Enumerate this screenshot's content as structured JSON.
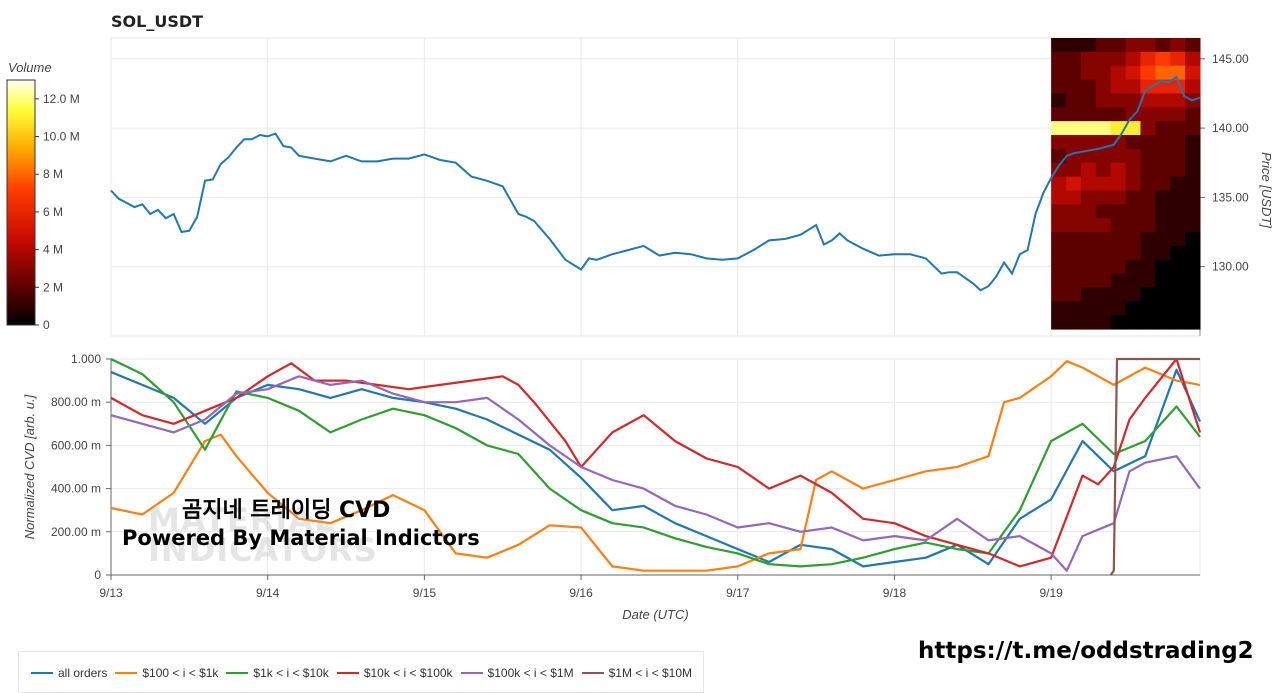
{
  "title": "SOL_USDT",
  "colorbar": {
    "label": "Volume",
    "ticks": [
      {
        "value": 0,
        "label": "0"
      },
      {
        "value": 2,
        "label": "2 M"
      },
      {
        "value": 4,
        "label": "4 M"
      },
      {
        "value": 6,
        "label": "6 M"
      },
      {
        "value": 8,
        "label": "8 M"
      },
      {
        "value": 10,
        "label": "10.0 M"
      },
      {
        "value": 12,
        "label": "12.0 M"
      }
    ],
    "max": 13
  },
  "watermark": {
    "line1": "곰지네 트레이딩 CVD",
    "line2": "Powered By Material Indictors",
    "logo_top": "MATERIAL",
    "logo_bottom": "INDICATORS"
  },
  "footer_url": "https://t.me/oddstrading2",
  "chart_data": [
    {
      "type": "line",
      "title": "SOL_USDT",
      "ylabel": "Price [USDT]",
      "ylim": [
        125,
        146.5
      ],
      "yticks": [
        "130.00",
        "135.00",
        "140.00",
        "145.00"
      ],
      "x_range_days": [
        13,
        19.95
      ],
      "series": [
        {
          "name": "price",
          "color": "#1f77b4",
          "x": [
            13.0,
            13.05,
            13.1,
            13.15,
            13.2,
            13.25,
            13.3,
            13.35,
            13.4,
            13.45,
            13.5,
            13.55,
            13.6,
            13.65,
            13.7,
            13.75,
            13.8,
            13.85,
            13.9,
            13.95,
            14.0,
            14.05,
            14.1,
            14.15,
            14.2,
            14.3,
            14.4,
            14.5,
            14.6,
            14.7,
            14.8,
            14.9,
            15.0,
            15.05,
            15.1,
            15.2,
            15.3,
            15.4,
            15.5,
            15.6,
            15.65,
            15.7,
            15.8,
            15.9,
            16.0,
            16.05,
            16.1,
            16.2,
            16.3,
            16.4,
            16.5,
            16.6,
            16.7,
            16.8,
            16.9,
            17.0,
            17.1,
            17.2,
            17.3,
            17.4,
            17.5,
            17.55,
            17.6,
            17.65,
            17.7,
            17.8,
            17.9,
            18.0,
            18.1,
            18.2,
            18.3,
            18.35,
            18.4,
            18.5,
            18.55,
            18.6,
            18.65,
            18.7,
            18.75,
            18.8,
            18.85,
            18.9,
            18.95,
            19.0,
            19.05,
            19.1,
            19.15,
            19.2,
            19.3,
            19.4,
            19.45,
            19.5,
            19.55,
            19.6,
            19.7,
            19.75,
            19.8,
            19.85,
            19.9,
            19.95
          ],
          "y": [
            135.5,
            134.9,
            134.6,
            134.3,
            134.5,
            133.8,
            134.1,
            133.5,
            133.8,
            132.5,
            132.6,
            133.6,
            136.2,
            136.3,
            137.4,
            137.9,
            138.6,
            139.2,
            139.2,
            139.5,
            139.4,
            139.6,
            138.7,
            138.6,
            138.0,
            137.8,
            137.6,
            138.0,
            137.6,
            137.6,
            137.8,
            137.8,
            138.1,
            137.9,
            137.7,
            137.5,
            136.5,
            136.2,
            135.8,
            133.8,
            133.6,
            133.3,
            132.0,
            130.5,
            129.8,
            130.6,
            130.5,
            130.9,
            131.2,
            131.5,
            130.8,
            131.0,
            130.9,
            130.6,
            130.5,
            130.6,
            131.2,
            131.9,
            132.0,
            132.3,
            133.0,
            131.6,
            131.9,
            132.4,
            131.9,
            131.3,
            130.8,
            130.9,
            130.9,
            130.6,
            129.5,
            129.6,
            129.6,
            128.8,
            128.3,
            128.6,
            129.3,
            130.3,
            129.5,
            130.9,
            131.2,
            133.8,
            135.3,
            136.4,
            137.3,
            138.0,
            138.2,
            138.3,
            138.5,
            138.8,
            139.6,
            140.6,
            141.2,
            142.7,
            143.4,
            143.3,
            143.7,
            142.3,
            142.0,
            142.2
          ]
        }
      ],
      "heatmap": {
        "x_start": 19.0,
        "x_end": 19.95,
        "cols": 10,
        "note": "volume profile",
        "rows": [
          {
            "price": 146.0,
            "values": [
              1,
              1,
              1,
              2,
              2,
              3,
              3,
              2,
              3,
              2
            ]
          },
          {
            "price": 145.0,
            "values": [
              2,
              2,
              3,
              3,
              3,
              4,
              6,
              7,
              6,
              4
            ]
          },
          {
            "price": 144.0,
            "values": [
              2,
              2,
              3,
              3,
              4,
              5,
              7,
              8,
              8,
              5
            ]
          },
          {
            "price": 143.0,
            "values": [
              2,
              2,
              2,
              3,
              4,
              4,
              6,
              6,
              6,
              4
            ]
          },
          {
            "price": 142.0,
            "values": [
              1,
              2,
              2,
              3,
              3,
              3,
              4,
              4,
              4,
              3
            ]
          },
          {
            "price": 141.0,
            "values": [
              2,
              2,
              2,
              2,
              2,
              3,
              3,
              3,
              3,
              2
            ]
          },
          {
            "price": 140.0,
            "values": [
              12,
              12,
              12,
              12,
              11,
              11,
              3,
              2,
              2,
              2
            ]
          },
          {
            "price": 139.0,
            "values": [
              3,
              3,
              3,
              3,
              3,
              2,
              2,
              2,
              2,
              1
            ]
          },
          {
            "price": 138.0,
            "values": [
              2,
              3,
              3,
              3,
              3,
              3,
              2,
              2,
              2,
              1
            ]
          },
          {
            "price": 137.0,
            "values": [
              3,
              3,
              4,
              3,
              4,
              3,
              2,
              2,
              2,
              1
            ]
          },
          {
            "price": 136.0,
            "values": [
              4,
              5,
              4,
              4,
              4,
              3,
              2,
              2,
              1,
              1
            ]
          },
          {
            "price": 135.0,
            "values": [
              4,
              4,
              3,
              3,
              3,
              2,
              2,
              1,
              1,
              1
            ]
          },
          {
            "price": 134.0,
            "values": [
              3,
              3,
              3,
              2,
              2,
              2,
              2,
              1,
              1,
              1
            ]
          },
          {
            "price": 133.0,
            "values": [
              3,
              3,
              3,
              3,
              2,
              2,
              2,
              1,
              1,
              1
            ]
          },
          {
            "price": 132.0,
            "values": [
              2,
              2,
              2,
              2,
              2,
              2,
              1,
              1,
              1,
              0
            ]
          },
          {
            "price": 131.0,
            "values": [
              2,
              2,
              2,
              2,
              2,
              2,
              1,
              1,
              0,
              0
            ]
          },
          {
            "price": 130.0,
            "values": [
              2,
              2,
              2,
              2,
              2,
              1,
              1,
              0,
              0,
              0
            ]
          },
          {
            "price": 129.0,
            "values": [
              2,
              2,
              2,
              2,
              1,
              1,
              1,
              0,
              0,
              0
            ]
          },
          {
            "price": 128.0,
            "values": [
              2,
              2,
              1,
              1,
              1,
              1,
              0,
              0,
              0,
              0
            ]
          },
          {
            "price": 127.0,
            "values": [
              1,
              1,
              1,
              1,
              1,
              0,
              0,
              0,
              0,
              0
            ]
          },
          {
            "price": 126.0,
            "values": [
              1,
              1,
              1,
              1,
              0,
              0,
              0,
              0,
              0,
              0
            ]
          }
        ]
      }
    },
    {
      "type": "line",
      "xlabel": "Date (UTC)",
      "ylabel": "Normalized CVD [arb. u.]",
      "ylim": [
        0,
        1
      ],
      "yticks": [
        "0",
        "200.00 m",
        "400.00 m",
        "600.00 m",
        "800.00 m",
        "1.000"
      ],
      "x_range_days": [
        13,
        19.95
      ],
      "categories": [
        "9/13",
        "9/14",
        "9/15",
        "9/16",
        "9/17",
        "9/18",
        "9/19"
      ],
      "legend": "bottom",
      "series": [
        {
          "name": "all orders",
          "color": "#1f77b4",
          "x": [
            13.0,
            13.2,
            13.4,
            13.6,
            13.8,
            14.0,
            14.2,
            14.4,
            14.6,
            14.8,
            15.0,
            15.2,
            15.4,
            15.6,
            15.8,
            16.0,
            16.2,
            16.4,
            16.6,
            16.8,
            17.0,
            17.2,
            17.4,
            17.6,
            17.8,
            18.0,
            18.2,
            18.4,
            18.6,
            18.8,
            19.0,
            19.2,
            19.4,
            19.6,
            19.8,
            19.95
          ],
          "y": [
            0.94,
            0.88,
            0.82,
            0.7,
            0.82,
            0.88,
            0.86,
            0.82,
            0.86,
            0.82,
            0.8,
            0.77,
            0.72,
            0.65,
            0.58,
            0.45,
            0.3,
            0.32,
            0.24,
            0.18,
            0.12,
            0.06,
            0.14,
            0.12,
            0.04,
            0.06,
            0.08,
            0.14,
            0.05,
            0.26,
            0.35,
            0.62,
            0.48,
            0.55,
            0.95,
            0.71
          ]
        },
        {
          "name": "$100 < i < $1k",
          "color": "#ff7f0e",
          "x": [
            13.0,
            13.2,
            13.4,
            13.6,
            13.7,
            13.8,
            14.0,
            14.2,
            14.4,
            14.6,
            14.8,
            15.0,
            15.2,
            15.4,
            15.6,
            15.8,
            16.0,
            16.2,
            16.4,
            16.6,
            16.8,
            17.0,
            17.2,
            17.4,
            17.5,
            17.6,
            17.8,
            18.0,
            18.2,
            18.4,
            18.6,
            18.7,
            18.8,
            19.0,
            19.1,
            19.2,
            19.4,
            19.6,
            19.8,
            19.95
          ],
          "y": [
            0.31,
            0.28,
            0.38,
            0.62,
            0.65,
            0.55,
            0.38,
            0.26,
            0.24,
            0.3,
            0.37,
            0.3,
            0.1,
            0.08,
            0.14,
            0.23,
            0.22,
            0.04,
            0.02,
            0.02,
            0.02,
            0.04,
            0.1,
            0.12,
            0.44,
            0.48,
            0.4,
            0.44,
            0.48,
            0.5,
            0.55,
            0.8,
            0.82,
            0.92,
            0.99,
            0.96,
            0.88,
            0.96,
            0.9,
            0.88
          ]
        },
        {
          "name": "$1k < i < $10k",
          "color": "#2ca02c",
          "x": [
            13.0,
            13.2,
            13.4,
            13.6,
            13.8,
            14.0,
            14.2,
            14.4,
            14.6,
            14.8,
            15.0,
            15.2,
            15.4,
            15.6,
            15.8,
            16.0,
            16.2,
            16.4,
            16.6,
            16.8,
            17.0,
            17.2,
            17.4,
            17.6,
            17.8,
            18.0,
            18.2,
            18.4,
            18.6,
            18.8,
            19.0,
            19.2,
            19.4,
            19.6,
            19.8,
            19.95
          ],
          "y": [
            1.0,
            0.93,
            0.8,
            0.58,
            0.85,
            0.82,
            0.76,
            0.66,
            0.72,
            0.77,
            0.74,
            0.68,
            0.6,
            0.56,
            0.4,
            0.3,
            0.24,
            0.22,
            0.17,
            0.13,
            0.1,
            0.05,
            0.04,
            0.05,
            0.08,
            0.12,
            0.15,
            0.12,
            0.1,
            0.3,
            0.62,
            0.7,
            0.56,
            0.62,
            0.78,
            0.64
          ]
        },
        {
          "name": "$10k < i < $100k",
          "color": "#d62728",
          "x": [
            13.0,
            13.2,
            13.4,
            13.6,
            13.8,
            14.0,
            14.15,
            14.3,
            14.5,
            14.7,
            14.9,
            15.1,
            15.3,
            15.5,
            15.6,
            15.7,
            15.9,
            16.0,
            16.1,
            16.2,
            16.4,
            16.6,
            16.8,
            17.0,
            17.2,
            17.4,
            17.6,
            17.8,
            18.0,
            18.2,
            18.4,
            18.6,
            18.8,
            19.0,
            19.2,
            19.3,
            19.4,
            19.5,
            19.6,
            19.8,
            19.95
          ],
          "y": [
            0.82,
            0.74,
            0.7,
            0.76,
            0.82,
            0.92,
            0.98,
            0.9,
            0.9,
            0.88,
            0.86,
            0.88,
            0.9,
            0.92,
            0.88,
            0.8,
            0.62,
            0.5,
            0.58,
            0.66,
            0.74,
            0.62,
            0.54,
            0.5,
            0.4,
            0.46,
            0.38,
            0.26,
            0.24,
            0.18,
            0.14,
            0.1,
            0.04,
            0.08,
            0.46,
            0.42,
            0.5,
            0.72,
            0.82,
            1.0,
            0.66
          ]
        },
        {
          "name": "$100k < i < $1M",
          "color": "#9467bd",
          "x": [
            13.0,
            13.2,
            13.4,
            13.6,
            13.8,
            14.0,
            14.2,
            14.4,
            14.6,
            14.8,
            15.0,
            15.2,
            15.4,
            15.6,
            15.8,
            16.0,
            16.2,
            16.4,
            16.6,
            16.8,
            17.0,
            17.2,
            17.4,
            17.6,
            17.8,
            18.0,
            18.2,
            18.4,
            18.6,
            18.8,
            19.0,
            19.1,
            19.2,
            19.4,
            19.5,
            19.6,
            19.8,
            19.95
          ],
          "y": [
            0.74,
            0.7,
            0.66,
            0.72,
            0.84,
            0.86,
            0.92,
            0.88,
            0.9,
            0.84,
            0.8,
            0.8,
            0.82,
            0.72,
            0.6,
            0.5,
            0.44,
            0.4,
            0.32,
            0.28,
            0.22,
            0.24,
            0.2,
            0.22,
            0.16,
            0.18,
            0.16,
            0.26,
            0.16,
            0.18,
            0.1,
            0.02,
            0.18,
            0.24,
            0.48,
            0.52,
            0.55,
            0.4
          ]
        },
        {
          "name": "$1M < i < $10M",
          "color": "#8c564b",
          "x": [
            19.38,
            19.4,
            19.42,
            19.95
          ],
          "y": [
            0.0,
            0.02,
            1.0,
            1.0
          ]
        }
      ]
    }
  ]
}
